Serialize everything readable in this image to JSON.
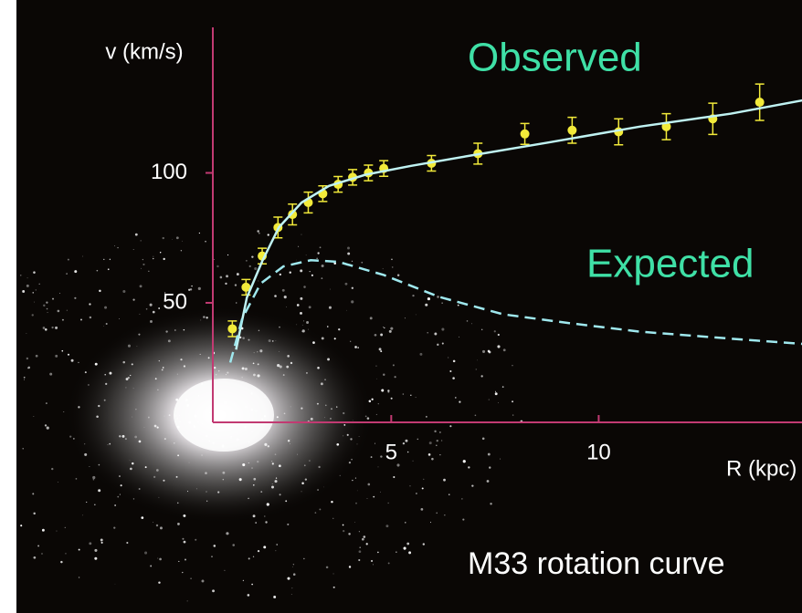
{
  "chart_data": {
    "type": "line",
    "title": "M33 rotation curve",
    "xlabel": "R (kpc)",
    "ylabel": "v (km/s)",
    "xlim": [
      0.7,
      14.9
    ],
    "ylim": [
      4,
      156
    ],
    "xticks": [
      5,
      10
    ],
    "yticks": [
      50,
      100
    ],
    "axis_color": "#c23a72",
    "label_color": "#3fe0a6",
    "series": [
      {
        "name": "Observed",
        "style": "points",
        "color": "#f2ea3a",
        "x": [
          1.17,
          1.5,
          1.89,
          2.27,
          2.62,
          3.0,
          3.35,
          3.72,
          4.07,
          4.45,
          4.82,
          5.97,
          7.09,
          8.22,
          9.36,
          10.48,
          11.63,
          12.75,
          13.88
        ],
        "values": [
          40,
          56,
          68,
          79,
          84,
          88.6,
          92,
          95.6,
          98.3,
          100,
          101.7,
          103.7,
          107.4,
          115,
          116.4,
          115.8,
          117.8,
          120.8,
          127.2
        ],
        "errors": [
          3,
          3,
          3,
          4,
          4,
          4,
          3,
          3,
          3,
          3,
          3,
          3,
          4,
          4,
          5,
          5,
          5,
          6,
          7
        ]
      },
      {
        "style": "solid",
        "color": "#bff2f2",
        "x": [
          1.26,
          1.52,
          1.89,
          2.29,
          2.84,
          3.5,
          4.38,
          5.48,
          7.03,
          8.79,
          10.99,
          13.19,
          14.91
        ],
        "values": [
          32,
          52,
          66,
          79,
          88.6,
          95,
          99.3,
          102.7,
          107,
          111.7,
          117.8,
          122.8,
          127.9
        ]
      },
      {
        "name": "Expected",
        "style": "dashed",
        "color": "#9fe8ee",
        "x": [
          1.12,
          1.41,
          1.85,
          2.4,
          3.06,
          3.72,
          4.82,
          6.15,
          7.69,
          9.23,
          10.99,
          13.19,
          14.91
        ],
        "values": [
          27,
          44,
          57.4,
          64,
          66.4,
          65.8,
          60.7,
          52.3,
          45.6,
          42.3,
          38.9,
          36.2,
          34.2
        ]
      }
    ]
  }
}
